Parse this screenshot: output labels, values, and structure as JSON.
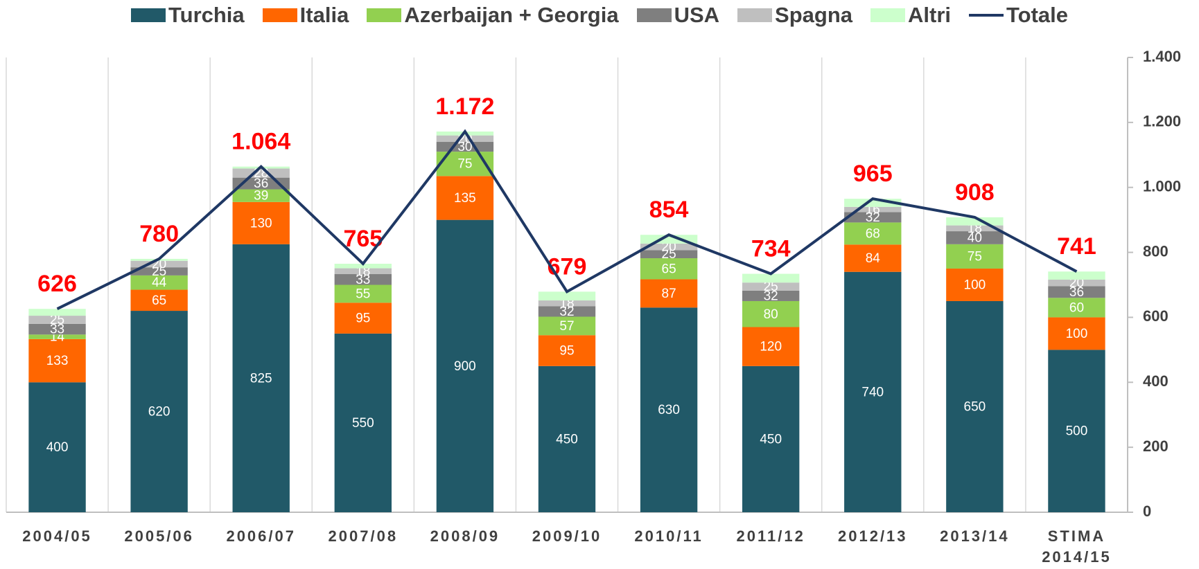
{
  "chart_data": {
    "type": "stacked-bar-line",
    "categories": [
      "2004/05",
      "2005/06",
      "2006/07",
      "2007/08",
      "2008/09",
      "2009/10",
      "2010/11",
      "2011/12",
      "2012/13",
      "2013/14",
      "STIMA 2014/15"
    ],
    "series": [
      {
        "name": "Turchia",
        "color": "#215968",
        "values": [
          400,
          620,
          825,
          550,
          900,
          450,
          630,
          450,
          740,
          650,
          500
        ]
      },
      {
        "name": "Italia",
        "color": "#ff6600",
        "values": [
          133,
          65,
          130,
          95,
          135,
          95,
          87,
          120,
          84,
          100,
          100
        ]
      },
      {
        "name": "Azerbaijan + Georgia",
        "color": "#92d050",
        "values": [
          14,
          44,
          39,
          55,
          75,
          57,
          65,
          80,
          68,
          75,
          60
        ]
      },
      {
        "name": "USA",
        "color": "#7f7f7f",
        "values": [
          33,
          25,
          36,
          33,
          30,
          32,
          25,
          32,
          32,
          40,
          36
        ]
      },
      {
        "name": "Spagna",
        "color": "#bfbfbf",
        "values": [
          25,
          20,
          28,
          18,
          20,
          18,
          20,
          25,
          16,
          18,
          20
        ]
      },
      {
        "name": "Altri",
        "color": "#ccffcc",
        "values": [
          21,
          6,
          6,
          14,
          12,
          27,
          27,
          27,
          25,
          25,
          25
        ]
      },
      {
        "name": "Totale",
        "color": "#1f3864",
        "kind": "line",
        "values": [
          626,
          780,
          1064,
          765,
          1172,
          679,
          854,
          734,
          965,
          908,
          741
        ],
        "value_labels": [
          "626",
          "780",
          "1.064",
          "765",
          "1.172",
          "679",
          "854",
          "734",
          "965",
          "908",
          "741"
        ]
      }
    ],
    "ylim": [
      0,
      1400
    ],
    "yticks": [
      0,
      200,
      400,
      600,
      800,
      {
        "value": 1000,
        "label": "1.000"
      },
      {
        "value": 1200,
        "label": "1.200"
      },
      {
        "value": 1400,
        "label": "1.400"
      }
    ]
  }
}
